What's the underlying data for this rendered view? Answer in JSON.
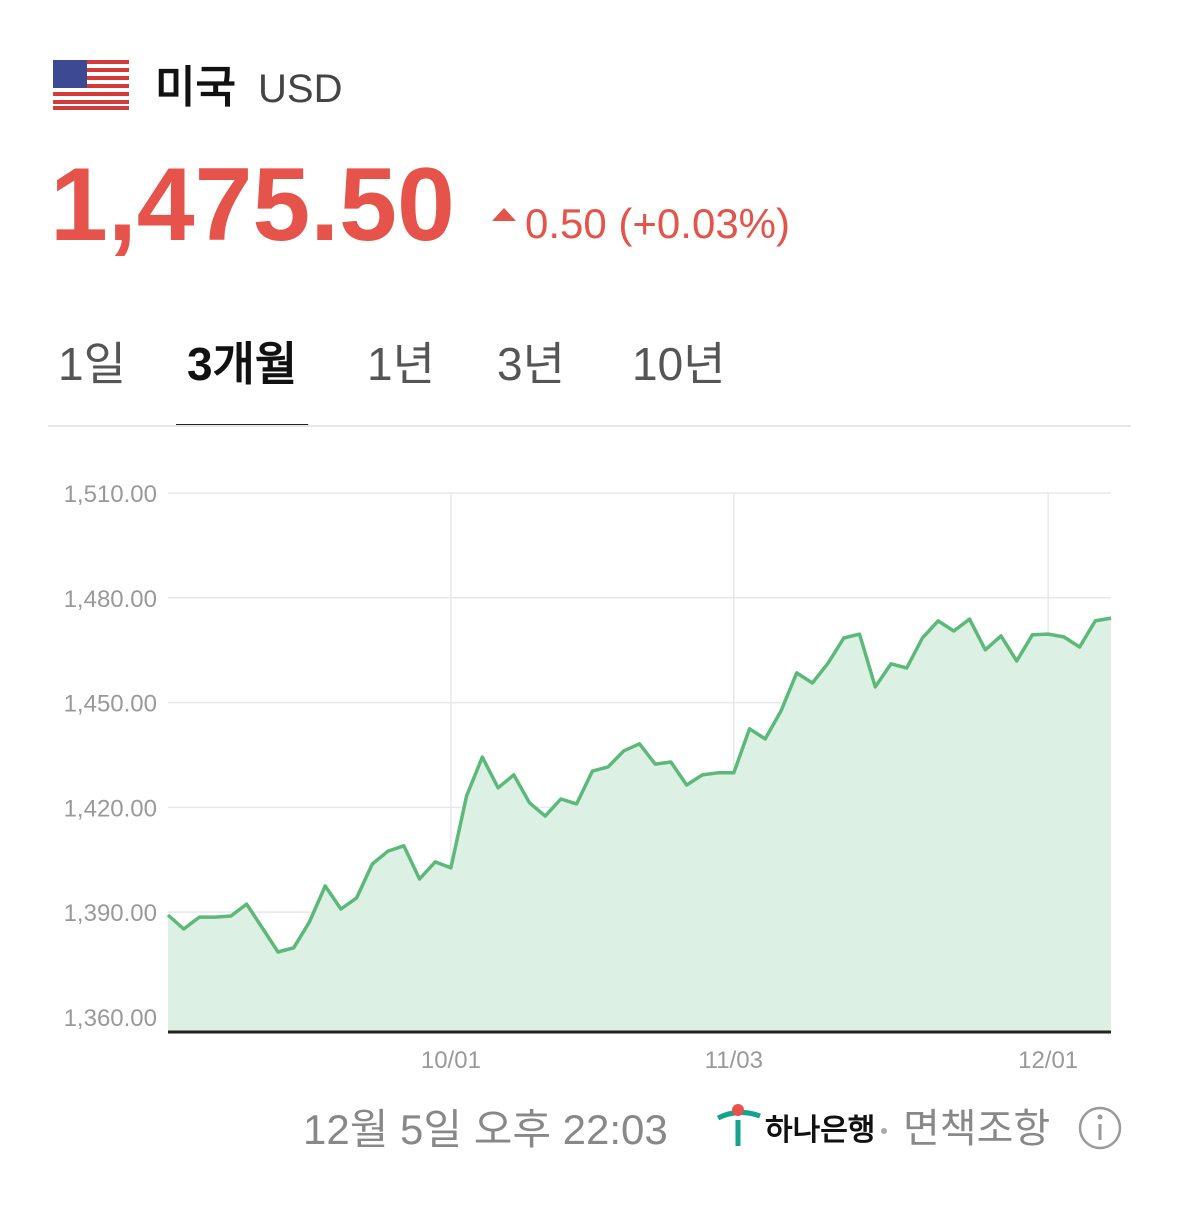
{
  "header": {
    "country": "미국",
    "currency": "USD"
  },
  "quote": {
    "price": "1,475.50",
    "change": "0.50 (+0.03%)"
  },
  "tabs": [
    "1일",
    "3개월",
    "1년",
    "3년",
    "10년"
  ],
  "active_tab": 1,
  "chart_data": {
    "type": "area",
    "categories": [
      null,
      null,
      null,
      null,
      null,
      null,
      null,
      null,
      null,
      null,
      null,
      null,
      null,
      null,
      null,
      null,
      null,
      null,
      "10/01",
      null,
      null,
      null,
      null,
      null,
      null,
      null,
      null,
      null,
      null,
      null,
      null,
      null,
      null,
      null,
      null,
      null,
      "11/03",
      null,
      null,
      null,
      null,
      null,
      null,
      null,
      null,
      null,
      null,
      null,
      null,
      null,
      null,
      null,
      null,
      null,
      null,
      null,
      "12/01",
      null,
      null,
      null,
      null
    ],
    "series": [
      {
        "color": "#5cb97a",
        "fill": "#dcf0e3",
        "values": [
          1389.2,
          1385.2,
          1388.6,
          1388.6,
          1388.9,
          1392.3,
          1385.5,
          1378.6,
          1379.8,
          1387.2,
          1397.5,
          1390.9,
          1394.1,
          1403.8,
          1407.5,
          1409.0,
          1399.5,
          1404.4,
          1402.7,
          1423.3,
          1434.4,
          1425.6,
          1429.3,
          1421.3,
          1417.5,
          1422.4,
          1421.0,
          1430.4,
          1431.6,
          1436.2,
          1438.2,
          1432.4,
          1433.0,
          1426.4,
          1429.3,
          1429.9,
          1429.9,
          1442.5,
          1439.6,
          1447.6,
          1458.5,
          1455.6,
          1461.3,
          1468.5,
          1469.6,
          1454.5,
          1461.1,
          1459.9,
          1468.5,
          1473.4,
          1470.5,
          1473.9,
          1465.1,
          1469.1,
          1461.9,
          1469.4,
          1469.6,
          1468.8,
          1465.9,
          1473.4,
          1474.2
        ]
      }
    ],
    "ylim": [
      1355.7,
      1510
    ],
    "yticks": [
      {
        "value": 1360,
        "label": "1,360.00"
      },
      {
        "value": 1390,
        "label": "1,390.00"
      },
      {
        "value": 1420,
        "label": "1,420.00"
      },
      {
        "value": 1450,
        "label": "1,450.00"
      },
      {
        "value": 1480,
        "label": "1,480.00"
      },
      {
        "value": 1510,
        "label": "1,510.00"
      }
    ],
    "grid": true
  },
  "footer": {
    "timestamp": "12월 5일 오후 22:03",
    "bank": "하나은행",
    "disclaimer": "면책조항"
  }
}
